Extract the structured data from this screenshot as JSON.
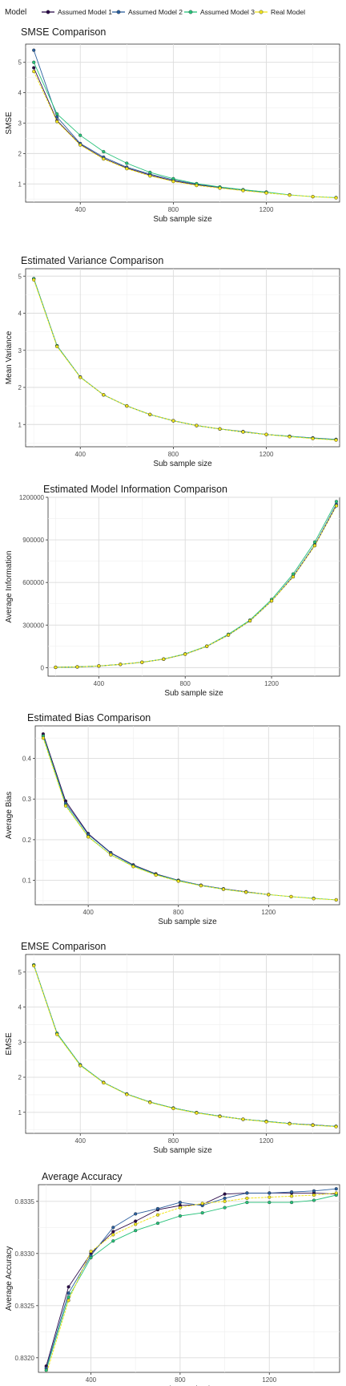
{
  "legend": {
    "title": "Model",
    "items": [
      {
        "label": "Assumed Model 1",
        "color": "#2b0a4a"
      },
      {
        "label": "Assumed Model 2",
        "color": "#2b5f9e"
      },
      {
        "label": "Assumed Model 3",
        "color": "#27c27a"
      },
      {
        "label": "Real Model",
        "color": "#f2e61e"
      }
    ]
  },
  "chart_data": [
    {
      "type": "line",
      "title": "SMSE Comparison",
      "xlabel": "Sub sample size",
      "ylabel": "SMSE",
      "xlim": [
        165,
        1515
      ],
      "ylim": [
        0.4,
        5.6
      ],
      "xticks": [
        400,
        800,
        1200
      ],
      "yticks": [
        1,
        2,
        3,
        4,
        5
      ],
      "ytick_labels": [
        "1",
        "2",
        "3",
        "4",
        "5"
      ],
      "grid": true,
      "series": [
        {
          "name": "Assumed Model 1",
          "x": [
            200,
            300,
            400,
            500,
            600,
            700,
            800,
            900,
            1000,
            1100,
            1200
          ],
          "y": [
            4.82,
            3.08,
            2.3,
            1.84,
            1.52,
            1.29,
            1.1,
            0.97,
            0.88,
            0.79,
            0.72
          ]
        },
        {
          "name": "Assumed Model 2",
          "x": [
            200,
            300,
            400,
            500,
            600,
            700,
            800,
            900,
            1000,
            1100,
            1200
          ],
          "y": [
            5.4,
            3.2,
            2.33,
            1.88,
            1.55,
            1.32,
            1.13,
            0.99,
            0.89,
            0.8,
            0.73
          ]
        },
        {
          "name": "Assumed Model 3",
          "x": [
            200,
            300,
            400,
            500,
            600,
            700,
            800,
            900,
            1000,
            1100,
            1200,
            1300,
            1400,
            1500
          ],
          "y": [
            5.0,
            3.3,
            2.6,
            2.06,
            1.68,
            1.38,
            1.17,
            1.01,
            0.9,
            0.81,
            0.73,
            0.64,
            0.58,
            0.55
          ]
        },
        {
          "name": "Real Model",
          "x": [
            200,
            300,
            400,
            500,
            600,
            700,
            800,
            900,
            1000,
            1100,
            1200,
            1300,
            1400,
            1500
          ],
          "y": [
            4.7,
            3.05,
            2.28,
            1.82,
            1.5,
            1.26,
            1.08,
            0.95,
            0.86,
            0.78,
            0.7,
            0.63,
            0.58,
            0.54
          ]
        }
      ]
    },
    {
      "type": "line",
      "title": "Estimated Variance Comparison",
      "xlabel": "Sub sample size",
      "ylabel": "Mean Variance",
      "xlim": [
        165,
        1515
      ],
      "ylim": [
        0.4,
        5.2
      ],
      "xticks": [
        400,
        800,
        1200
      ],
      "yticks": [
        1,
        2,
        3,
        4,
        5
      ],
      "ytick_labels": [
        "1",
        "2",
        "3",
        "4",
        "5"
      ],
      "grid": true,
      "series": [
        {
          "name": "Assumed Model 1",
          "x": [
            200,
            300,
            400,
            500,
            600,
            700,
            800,
            900,
            1000,
            1100,
            1200,
            1300,
            1400,
            1500
          ],
          "y": [
            4.93,
            3.12,
            2.28,
            1.8,
            1.5,
            1.27,
            1.1,
            0.97,
            0.88,
            0.8,
            0.73,
            0.68,
            0.63,
            0.59
          ]
        },
        {
          "name": "Assumed Model 2",
          "x": [
            200,
            300,
            400,
            500,
            600,
            700,
            800,
            900,
            1000,
            1100,
            1200,
            1300,
            1400,
            1500
          ],
          "y": [
            4.93,
            3.12,
            2.28,
            1.8,
            1.5,
            1.27,
            1.1,
            0.97,
            0.88,
            0.81,
            0.73,
            0.68,
            0.64,
            0.6
          ]
        },
        {
          "name": "Assumed Model 3",
          "x": [
            200,
            300,
            400,
            500,
            600,
            700,
            800,
            900,
            1000,
            1100,
            1200,
            1300,
            1400,
            1500
          ],
          "y": [
            4.93,
            3.12,
            2.28,
            1.8,
            1.5,
            1.27,
            1.1,
            0.97,
            0.88,
            0.8,
            0.73,
            0.68,
            0.63,
            0.59
          ]
        },
        {
          "name": "Real Model",
          "x": [
            200,
            300,
            400,
            500,
            600,
            700,
            800,
            900,
            1000,
            1100,
            1200,
            1300,
            1400,
            1500
          ],
          "y": [
            4.9,
            3.1,
            2.27,
            1.8,
            1.5,
            1.27,
            1.1,
            0.97,
            0.88,
            0.8,
            0.73,
            0.67,
            0.62,
            0.58
          ]
        }
      ]
    },
    {
      "type": "line",
      "title": "Estimated Model Information Comparison",
      "xlabel": "Sub sample size",
      "ylabel": "Average Information",
      "xlim": [
        165,
        1515
      ],
      "ylim": [
        -60000,
        1200000
      ],
      "xticks": [
        400,
        800,
        1200
      ],
      "yticks": [
        0,
        300000,
        600000,
        900000,
        1200000
      ],
      "ytick_labels": [
        "0",
        "300000",
        "600000",
        "900000",
        "1200000"
      ],
      "grid": true,
      "series": [
        {
          "name": "Assumed Model 1",
          "x": [
            200,
            300,
            400,
            500,
            600,
            700,
            800,
            900,
            1000,
            1100,
            1200,
            1300,
            1400,
            1500
          ],
          "y": [
            2000,
            5000,
            12000,
            23000,
            38000,
            60000,
            95000,
            150000,
            230000,
            330000,
            470000,
            640000,
            860000,
            1140000
          ]
        },
        {
          "name": "Assumed Model 2",
          "x": [
            200,
            300,
            400,
            500,
            600,
            700,
            800,
            900,
            1000,
            1100,
            1200,
            1300,
            1400,
            1500
          ],
          "y": [
            2000,
            5000,
            12000,
            23000,
            38000,
            60000,
            95000,
            150000,
            230000,
            330000,
            470000,
            645000,
            865000,
            1150000
          ]
        },
        {
          "name": "Assumed Model 3",
          "x": [
            200,
            300,
            400,
            500,
            600,
            700,
            800,
            900,
            1000,
            1100,
            1200,
            1300,
            1400,
            1500
          ],
          "y": [
            2000,
            5000,
            12000,
            23000,
            38000,
            61000,
            97000,
            152000,
            235000,
            335000,
            480000,
            660000,
            885000,
            1170000
          ]
        },
        {
          "name": "Real Model",
          "x": [
            200,
            300,
            400,
            500,
            600,
            700,
            800,
            900,
            1000,
            1100,
            1200,
            1300,
            1400,
            1500
          ],
          "y": [
            2000,
            5000,
            12000,
            23000,
            38000,
            60000,
            95000,
            150000,
            230000,
            330000,
            470000,
            640000,
            860000,
            1140000
          ]
        }
      ]
    },
    {
      "type": "line",
      "title": "Estimated Bias Comparison",
      "xlabel": "Sub sample size",
      "ylabel": "Average Bias",
      "xlim": [
        165,
        1515
      ],
      "ylim": [
        0.04,
        0.48
      ],
      "xticks": [
        400,
        800,
        1200
      ],
      "yticks": [
        0.1,
        0.2,
        0.3,
        0.4
      ],
      "ytick_labels": [
        "0.1",
        "0.2",
        "0.3",
        "0.4"
      ],
      "grid": true,
      "series": [
        {
          "name": "Assumed Model 1",
          "x": [
            200,
            300,
            400,
            500,
            600,
            700,
            800,
            900,
            1000,
            1100,
            1200
          ],
          "y": [
            0.46,
            0.295,
            0.215,
            0.168,
            0.138,
            0.116,
            0.1,
            0.088,
            0.079,
            0.072,
            0.065
          ]
        },
        {
          "name": "Assumed Model 2",
          "x": [
            200,
            300,
            400,
            500,
            600,
            700,
            800,
            900,
            1000,
            1100,
            1200
          ],
          "y": [
            0.455,
            0.29,
            0.213,
            0.167,
            0.137,
            0.115,
            0.1,
            0.088,
            0.079,
            0.071,
            0.065
          ]
        },
        {
          "name": "Assumed Model 3",
          "x": [
            200,
            300,
            400,
            500,
            600,
            700,
            800,
            900,
            1000,
            1100,
            1200,
            1300,
            1400,
            1500
          ],
          "y": [
            0.455,
            0.285,
            0.208,
            0.163,
            0.135,
            0.114,
            0.099,
            0.087,
            0.078,
            0.071,
            0.065,
            0.06,
            0.056,
            0.052
          ]
        },
        {
          "name": "Real Model",
          "x": [
            200,
            300,
            400,
            500,
            600,
            700,
            800,
            900,
            1000,
            1100,
            1200,
            1300,
            1400,
            1500
          ],
          "y": [
            0.45,
            0.283,
            0.207,
            0.163,
            0.134,
            0.113,
            0.098,
            0.087,
            0.078,
            0.071,
            0.065,
            0.06,
            0.055,
            0.052
          ]
        }
      ]
    },
    {
      "type": "line",
      "title": "EMSE Comparison",
      "xlabel": "Sub sample size",
      "ylabel": "EMSE",
      "xlim": [
        165,
        1515
      ],
      "ylim": [
        0.4,
        5.5
      ],
      "xticks": [
        400,
        800,
        1200
      ],
      "yticks": [
        1,
        2,
        3,
        4,
        5
      ],
      "ytick_labels": [
        "1",
        "2",
        "3",
        "4",
        "5"
      ],
      "grid": true,
      "series": [
        {
          "name": "Assumed Model 1",
          "x": [
            200,
            300,
            400,
            500,
            600,
            700,
            800,
            900,
            1000,
            1100,
            1200,
            1300,
            1400,
            1500
          ],
          "y": [
            5.2,
            3.25,
            2.35,
            1.85,
            1.52,
            1.29,
            1.12,
            0.99,
            0.89,
            0.8,
            0.74,
            0.68,
            0.64,
            0.6
          ]
        },
        {
          "name": "Assumed Model 2",
          "x": [
            200,
            300,
            400,
            500,
            600,
            700,
            800,
            900,
            1000,
            1100,
            1200,
            1300,
            1400,
            1500
          ],
          "y": [
            5.2,
            3.25,
            2.35,
            1.85,
            1.52,
            1.29,
            1.12,
            0.99,
            0.89,
            0.8,
            0.74,
            0.68,
            0.64,
            0.6
          ]
        },
        {
          "name": "Assumed Model 3",
          "x": [
            200,
            300,
            400,
            500,
            600,
            700,
            800,
            900,
            1000,
            1100,
            1200,
            1300,
            1400,
            1500
          ],
          "y": [
            5.2,
            3.25,
            2.35,
            1.85,
            1.52,
            1.29,
            1.12,
            0.99,
            0.89,
            0.8,
            0.74,
            0.68,
            0.63,
            0.6
          ]
        },
        {
          "name": "Real Model",
          "x": [
            200,
            300,
            400,
            500,
            600,
            700,
            800,
            900,
            1000,
            1100,
            1200,
            1300,
            1400,
            1500
          ],
          "y": [
            5.18,
            3.22,
            2.33,
            1.84,
            1.51,
            1.28,
            1.11,
            0.98,
            0.88,
            0.8,
            0.73,
            0.67,
            0.63,
            0.59
          ]
        }
      ]
    },
    {
      "type": "line",
      "title": "Average Accuracy",
      "xlabel": "Sub sample size",
      "ylabel": "Average Accuracy",
      "xlim": [
        165,
        1515
      ],
      "ylim": [
        0.83186,
        0.83366
      ],
      "xticks": [
        400,
        800,
        1200
      ],
      "yticks": [
        0.832,
        0.8325,
        0.833,
        0.8335
      ],
      "ytick_labels": [
        "0.8320",
        "0.8325",
        "0.8330",
        "0.8335"
      ],
      "grid": true,
      "series": [
        {
          "name": "Assumed Model 1",
          "x": [
            200,
            300,
            400,
            500,
            600,
            700,
            800,
            900,
            1000,
            1100,
            1200,
            1300,
            1400,
            1500
          ],
          "y": [
            0.83192,
            0.83268,
            0.833,
            0.83321,
            0.83331,
            0.83342,
            0.83346,
            0.83347,
            0.83357,
            0.83358,
            0.83358,
            0.83358,
            0.83358,
            0.83357
          ]
        },
        {
          "name": "Assumed Model 2",
          "x": [
            200,
            300,
            400,
            500,
            600,
            700,
            800,
            900,
            1000,
            1100,
            1200,
            1300,
            1400,
            1500
          ],
          "y": [
            0.8319,
            0.83262,
            0.83298,
            0.83325,
            0.83338,
            0.83343,
            0.83349,
            0.83346,
            0.83353,
            0.83358,
            0.83358,
            0.83359,
            0.8336,
            0.83362
          ]
        },
        {
          "name": "Assumed Model 3",
          "x": [
            200,
            300,
            400,
            500,
            600,
            700,
            800,
            900,
            1000,
            1100,
            1200,
            1300,
            1400,
            1500
          ],
          "y": [
            0.83188,
            0.83258,
            0.83296,
            0.83312,
            0.83322,
            0.83329,
            0.83336,
            0.83339,
            0.83344,
            0.83349,
            0.83349,
            0.83349,
            0.83351,
            0.83356
          ]
        },
        {
          "name": "Real Model",
          "x": [
            200,
            300,
            400,
            500,
            600,
            700,
            800,
            900,
            1000,
            1100,
            1200,
            1300,
            1400,
            1500
          ],
          "y": [
            0.83184,
            0.83255,
            0.83302,
            0.83318,
            0.83328,
            0.83337,
            0.83344,
            0.83348,
            0.8335,
            0.83353,
            0.83354,
            0.83355,
            0.83356,
            0.83358
          ]
        }
      ]
    }
  ]
}
